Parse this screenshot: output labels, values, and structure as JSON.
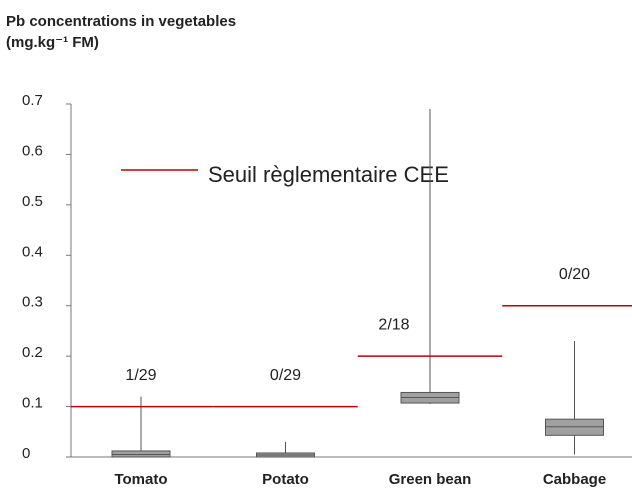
{
  "chart_data": {
    "type": "box",
    "title": "Pb concentrations in vegetables",
    "subtitle": "(mg.kg⁻¹ FM)",
    "categories": [
      "Tomato",
      "Potato",
      "Green bean",
      "Cabbage"
    ],
    "boxes": [
      {
        "min": 0,
        "q1": 0,
        "median": 0.005,
        "q3": 0.012,
        "max": 0.12
      },
      {
        "min": 0,
        "q1": 0,
        "median": 0.004,
        "q3": 0.008,
        "max": 0.03
      },
      {
        "min": 0.105,
        "q1": 0.107,
        "median": 0.118,
        "q3": 0.128,
        "max": 0.69
      },
      {
        "min": 0.005,
        "q1": 0.043,
        "median": 0.06,
        "q3": 0.075,
        "max": 0.23
      }
    ],
    "box_color": "#a0a0a0",
    "threshold": {
      "name": "Seuil règlementaire CEE",
      "color": "#c00000",
      "values": [
        0.1,
        0.1,
        0.2,
        0.3
      ]
    },
    "annotations": [
      "1/29",
      "0/29",
      "2/18",
      "0/20"
    ],
    "ylim": [
      0,
      0.7
    ],
    "yticks": [
      0,
      0.1,
      0.2,
      0.3,
      0.4,
      0.5,
      0.6,
      0.7
    ]
  }
}
